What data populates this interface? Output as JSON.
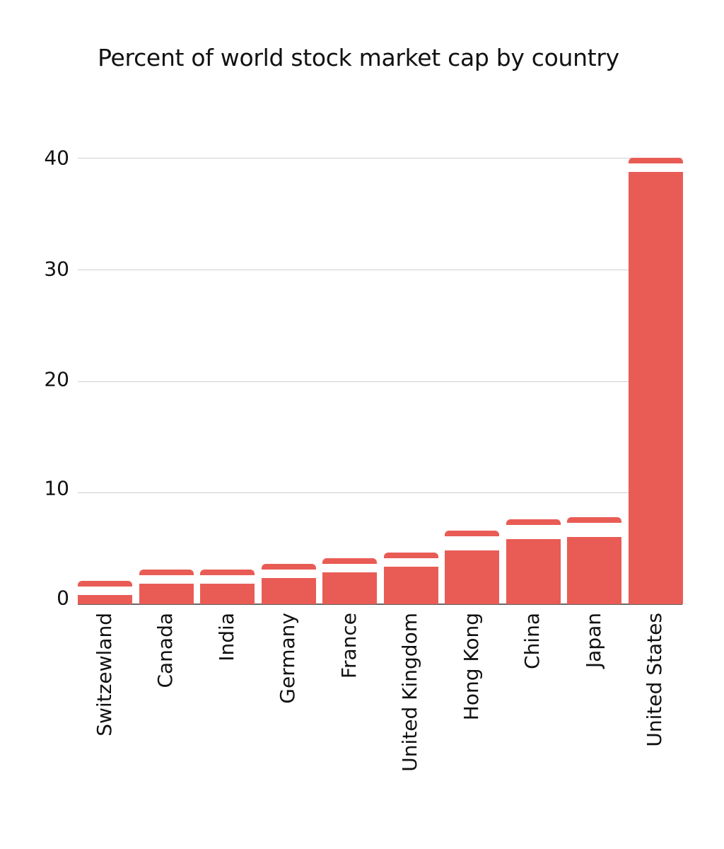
{
  "title": "Percent of world stock market cap by country",
  "colors": {
    "bar": "#e95c55",
    "grid": "#cfcfcf",
    "axis": "#666666"
  },
  "y_ticks": [
    "0",
    "10",
    "20",
    "30",
    "40"
  ],
  "chart_data": {
    "type": "bar",
    "title": "Percent of world stock market cap by country",
    "xlabel": "",
    "ylabel": "",
    "categories": [
      "Switzewland",
      "Canada",
      "India",
      "Germany",
      "France",
      "United Kingdom",
      "Hong Kong",
      "China",
      "Japan",
      "United States"
    ],
    "values": [
      2.1,
      3.1,
      3.1,
      3.6,
      4.1,
      4.6,
      6.6,
      7.6,
      7.8,
      40.0
    ],
    "ylim": [
      0,
      40
    ],
    "yticks": [
      0,
      10,
      20,
      30,
      40
    ],
    "grid": true,
    "legend": null
  }
}
